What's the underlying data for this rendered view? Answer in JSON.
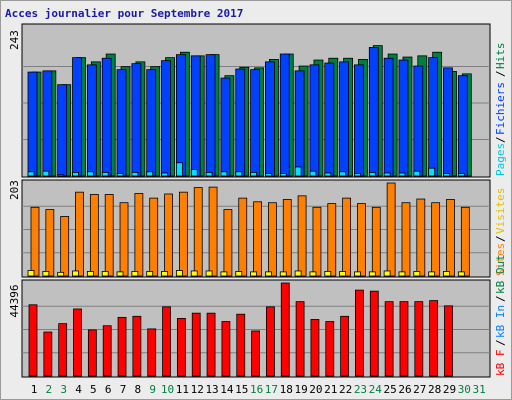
{
  "page_title": "Acces journalier pour Septembre 2017",
  "chart_data": [
    {
      "type": "bar",
      "panel": "hits-files-pages",
      "categories": [
        "1",
        "2",
        "3",
        "4",
        "5",
        "6",
        "7",
        "8",
        "9",
        "10",
        "11",
        "12",
        "13",
        "14",
        "15",
        "16",
        "17",
        "18",
        "19",
        "20",
        "21",
        "22",
        "23",
        "24",
        "25",
        "26",
        "27",
        "28",
        "29",
        "30"
      ],
      "ymax_label": "243",
      "ylim": [
        0,
        243
      ],
      "grid": true,
      "legend": [
        "Pages",
        "Fichiers",
        "Hits"
      ],
      "series": [
        {
          "name": "Hits",
          "color": "#008040",
          "values": [
            173,
            175,
            152,
            197,
            190,
            203,
            182,
            190,
            182,
            197,
            206,
            200,
            202,
            167,
            181,
            180,
            194,
            203,
            183,
            193,
            196,
            196,
            194,
            217,
            203,
            198,
            200,
            206,
            174,
            170
          ]
        },
        {
          "name": "Fichiers",
          "color": "#0040ff",
          "values": [
            173,
            175,
            152,
            197,
            185,
            196,
            177,
            187,
            177,
            192,
            202,
            200,
            202,
            163,
            178,
            177,
            190,
            203,
            175,
            185,
            188,
            190,
            185,
            214,
            196,
            193,
            183,
            197,
            180,
            167
          ]
        },
        {
          "name": "Pages",
          "color": "#00e0ff",
          "values": [
            7,
            8,
            2,
            6,
            7,
            6,
            4,
            6,
            7,
            5,
            22,
            11,
            6,
            7,
            7,
            6,
            4,
            4,
            15,
            8,
            5,
            7,
            4,
            6,
            5,
            5,
            8,
            13,
            4,
            4
          ]
        }
      ]
    },
    {
      "type": "bar",
      "panel": "visits-sites",
      "categories": [
        "1",
        "2",
        "3",
        "4",
        "5",
        "6",
        "7",
        "8",
        "9",
        "10",
        "11",
        "12",
        "13",
        "14",
        "15",
        "16",
        "17",
        "18",
        "19",
        "20",
        "21",
        "22",
        "23",
        "24",
        "25",
        "26",
        "27",
        "28",
        "29",
        "30"
      ],
      "ymax_label": "203",
      "ylim": [
        0,
        203
      ],
      "grid": true,
      "legend": [
        "Sites",
        "Visites"
      ],
      "series": [
        {
          "name": "Visites",
          "color": "#ff8000",
          "values": [
            150,
            145,
            130,
            183,
            178,
            178,
            160,
            180,
            170,
            179,
            183,
            193,
            194,
            145,
            170,
            162,
            160,
            167,
            175,
            150,
            158,
            170,
            158,
            150,
            203,
            160,
            168,
            160,
            167,
            150
          ]
        },
        {
          "name": "Sites",
          "color": "#ffff00",
          "values": [
            12,
            10,
            8,
            11,
            10,
            10,
            9,
            10,
            10,
            10,
            12,
            11,
            11,
            9,
            10,
            9,
            9,
            9,
            11,
            9,
            10,
            10,
            9,
            9,
            11,
            9,
            10,
            9,
            10,
            9
          ]
        }
      ]
    },
    {
      "type": "bar",
      "panel": "kb",
      "categories": [
        "1",
        "2",
        "3",
        "4",
        "5",
        "6",
        "7",
        "8",
        "9",
        "10",
        "11",
        "12",
        "13",
        "14",
        "15",
        "16",
        "17",
        "18",
        "19",
        "20",
        "21",
        "22",
        "23",
        "24",
        "25",
        "26",
        "27",
        "28",
        "29",
        "30"
      ],
      "ymax_label": "44396",
      "ylim": [
        0,
        44396
      ],
      "grid": true,
      "legend": [
        "kB F",
        "kB In",
        "kB Out"
      ],
      "series": [
        {
          "name": "kB F",
          "color": "#ff0000",
          "values": [
            34000,
            21000,
            25000,
            32000,
            22000,
            24000,
            28000,
            28500,
            22500,
            33000,
            27500,
            30000,
            30000,
            26000,
            29500,
            21500,
            33000,
            44396,
            35500,
            27000,
            26000,
            28500,
            41000,
            40500,
            35500,
            35500,
            35500,
            36000,
            33500,
            0
          ]
        }
      ]
    }
  ]
}
